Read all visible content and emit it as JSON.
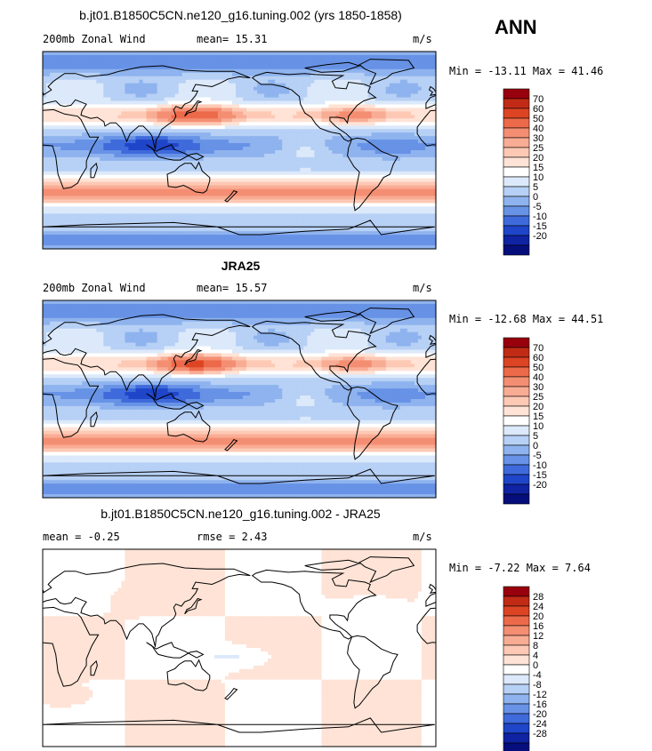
{
  "season": "ANN",
  "panels": [
    {
      "title": "b.jt01.B1850C5CN.ne120_g16.tuning.002 (yrs 1850-1858)",
      "left": "200mb Zonal Wind",
      "middle": "mean=  15.31",
      "units": "m/s",
      "minmax": "Min = -13.11 Max =  41.46",
      "levels": [
        "70",
        "60",
        "50",
        "40",
        "30",
        "25",
        "20",
        "15",
        "10",
        "5",
        "0",
        "-5",
        "-10",
        "-15",
        "-20"
      ],
      "colors": [
        "#99000d",
        "#c12b16",
        "#dd4424",
        "#ec6a4a",
        "#f48e73",
        "#f9ac94",
        "#fdc9b4",
        "#fee3d6",
        "#ffffff",
        "#dce9fa",
        "#b7d0f5",
        "#8eb3ee",
        "#6792e6",
        "#3e6adb",
        "#1f45c9",
        "#0f23a3",
        "#050e7a"
      ],
      "field": "model"
    },
    {
      "title": "JRA25",
      "left": "200mb Zonal Wind",
      "middle": "mean=  15.57",
      "units": "m/s",
      "minmax": "Min = -12.68 Max =  44.51",
      "levels": [
        "70",
        "60",
        "50",
        "40",
        "30",
        "25",
        "20",
        "15",
        "10",
        "5",
        "0",
        "-5",
        "-10",
        "-15",
        "-20"
      ],
      "colors": [
        "#99000d",
        "#c12b16",
        "#dd4424",
        "#ec6a4a",
        "#f48e73",
        "#f9ac94",
        "#fdc9b4",
        "#fee3d6",
        "#ffffff",
        "#dce9fa",
        "#b7d0f5",
        "#8eb3ee",
        "#6792e6",
        "#3e6adb",
        "#1f45c9",
        "#0f23a3",
        "#050e7a"
      ],
      "field": "obs"
    },
    {
      "title": "b.jt01.B1850C5CN.ne120_g16.tuning.002 - JRA25",
      "left": "mean =  -0.25",
      "middle": "rmse =   2.43",
      "units": "m/s",
      "minmax": "Min =  -7.22 Max =   7.64",
      "levels": [
        "28",
        "24",
        "20",
        "16",
        "12",
        "8",
        "4",
        "0",
        "-4",
        "-8",
        "-12",
        "-16",
        "-20",
        "-24",
        "-28"
      ],
      "colors": [
        "#99000d",
        "#c12b16",
        "#dd4424",
        "#ec6a4a",
        "#f48e73",
        "#f9ac94",
        "#fdc9b4",
        "#fee3d6",
        "#ffffff",
        "#dce9fa",
        "#b7d0f5",
        "#8eb3ee",
        "#6792e6",
        "#3e6adb",
        "#1f45c9",
        "#0f23a3",
        "#050e7a"
      ],
      "field": "diff"
    }
  ]
}
